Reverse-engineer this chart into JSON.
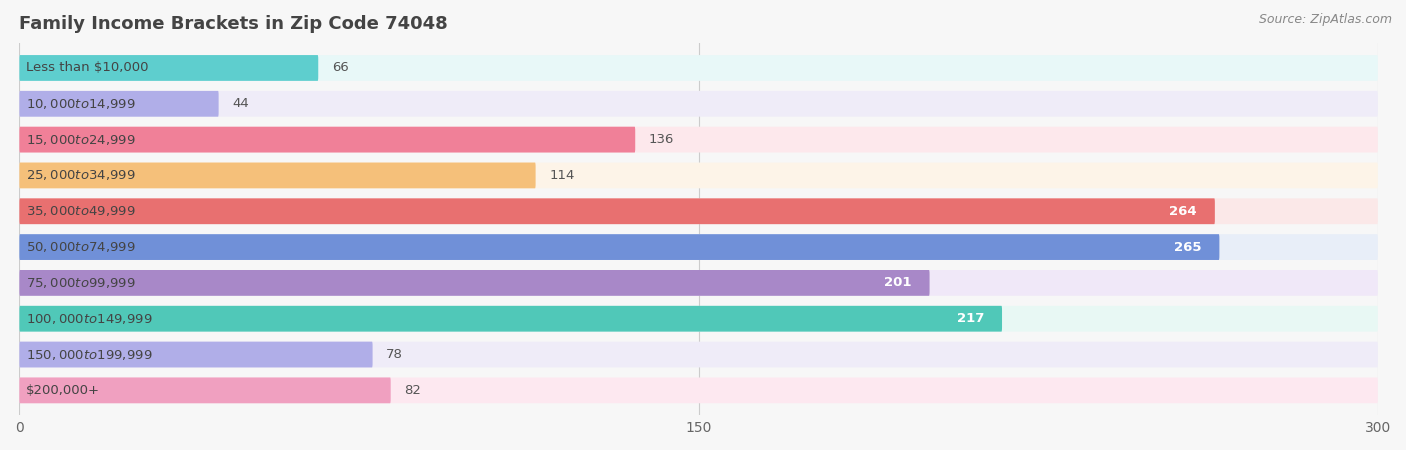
{
  "title": "Family Income Brackets in Zip Code 74048",
  "source": "Source: ZipAtlas.com",
  "categories": [
    "Less than $10,000",
    "$10,000 to $14,999",
    "$15,000 to $24,999",
    "$25,000 to $34,999",
    "$35,000 to $49,999",
    "$50,000 to $74,999",
    "$75,000 to $99,999",
    "$100,000 to $149,999",
    "$150,000 to $199,999",
    "$200,000+"
  ],
  "values": [
    66,
    44,
    136,
    114,
    264,
    265,
    201,
    217,
    78,
    82
  ],
  "bar_colors": [
    "#5ecece",
    "#b0aee8",
    "#f08098",
    "#f5c07a",
    "#e87070",
    "#7090d8",
    "#a888c8",
    "#50c8b8",
    "#b0aee8",
    "#f0a0c0"
  ],
  "bg_colors": [
    "#e8f8f8",
    "#efecf8",
    "#fde8ec",
    "#fdf4e8",
    "#fbe8e8",
    "#e8eef8",
    "#f0e8f8",
    "#e8f8f4",
    "#efecf8",
    "#fde8f0"
  ],
  "xlim": [
    0,
    300
  ],
  "xticks": [
    0,
    150,
    300
  ],
  "title_fontsize": 13,
  "label_fontsize": 9.5,
  "value_fontsize": 9.5,
  "background_color": "#f7f7f7",
  "bar_height": 0.72,
  "rounding_size": 0.12
}
